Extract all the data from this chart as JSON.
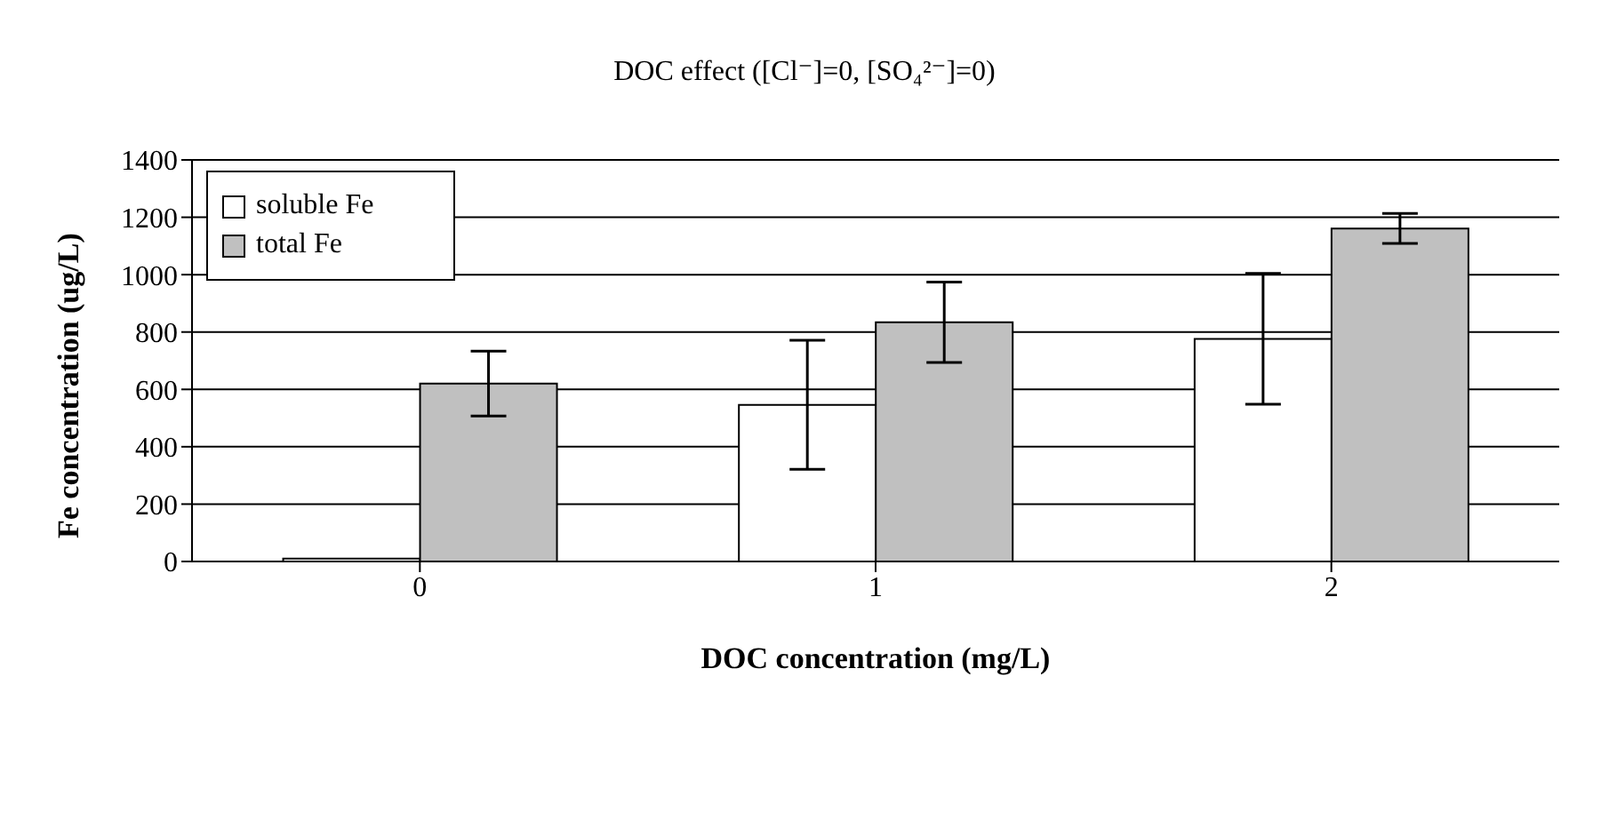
{
  "chart_data": {
    "type": "bar",
    "title": "DOC effect ([Cl⁻]=0, [SO₄²⁻]=0)",
    "xlabel": "DOC concentration (mg/L)",
    "ylabel": "Fe concentration (ug/L)",
    "categories": [
      "0",
      "1",
      "2"
    ],
    "series": [
      {
        "name": "soluble Fe",
        "color": "#ffffff",
        "values": [
          10,
          546,
          776
        ],
        "errors": [
          null,
          225,
          228
        ]
      },
      {
        "name": "total Fe",
        "color": "#c0c0c0",
        "values": [
          620,
          834,
          1161
        ],
        "errors": [
          113,
          140,
          52
        ]
      }
    ],
    "ylim": [
      0,
      1400
    ],
    "yticks": [
      0,
      200,
      400,
      600,
      800,
      1000,
      1200,
      1400
    ],
    "grid": "y",
    "legend": "top left"
  }
}
